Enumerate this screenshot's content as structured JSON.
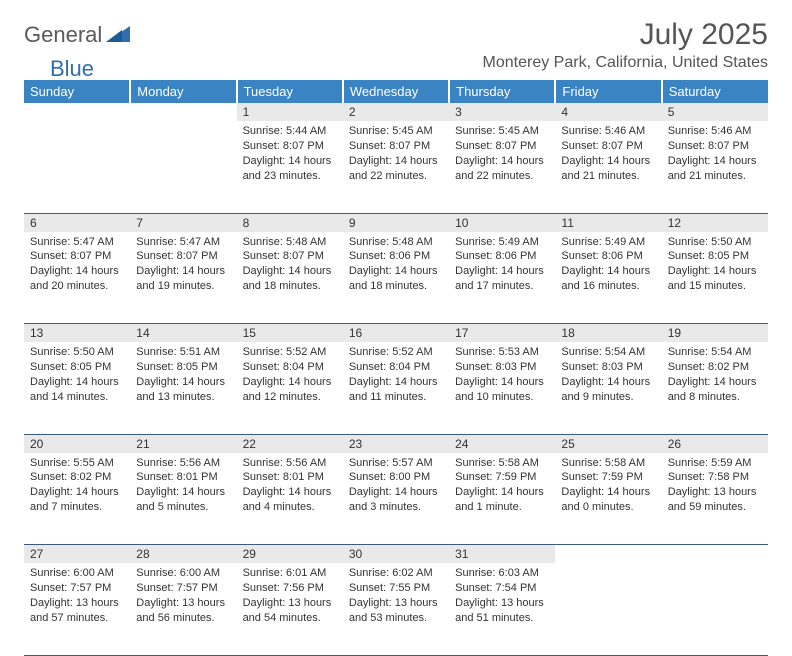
{
  "logo": {
    "text1": "General",
    "text2": "Blue"
  },
  "title": "July 2025",
  "location": "Monterey Park, California, United States",
  "colors": {
    "header_bg": "#3b84c4",
    "header_fg": "#ffffff",
    "daynum_bg": "#e9e9e9",
    "rule": "#3c5a7a",
    "logo_gray": "#5a5a5a",
    "logo_blue": "#2f6fad"
  },
  "columns": [
    "Sunday",
    "Monday",
    "Tuesday",
    "Wednesday",
    "Thursday",
    "Friday",
    "Saturday"
  ],
  "weeks": [
    [
      null,
      null,
      {
        "n": "1",
        "sunrise": "5:44 AM",
        "sunset": "8:07 PM",
        "daylight": "14 hours and 23 minutes."
      },
      {
        "n": "2",
        "sunrise": "5:45 AM",
        "sunset": "8:07 PM",
        "daylight": "14 hours and 22 minutes."
      },
      {
        "n": "3",
        "sunrise": "5:45 AM",
        "sunset": "8:07 PM",
        "daylight": "14 hours and 22 minutes."
      },
      {
        "n": "4",
        "sunrise": "5:46 AM",
        "sunset": "8:07 PM",
        "daylight": "14 hours and 21 minutes."
      },
      {
        "n": "5",
        "sunrise": "5:46 AM",
        "sunset": "8:07 PM",
        "daylight": "14 hours and 21 minutes."
      }
    ],
    [
      {
        "n": "6",
        "sunrise": "5:47 AM",
        "sunset": "8:07 PM",
        "daylight": "14 hours and 20 minutes."
      },
      {
        "n": "7",
        "sunrise": "5:47 AM",
        "sunset": "8:07 PM",
        "daylight": "14 hours and 19 minutes."
      },
      {
        "n": "8",
        "sunrise": "5:48 AM",
        "sunset": "8:07 PM",
        "daylight": "14 hours and 18 minutes."
      },
      {
        "n": "9",
        "sunrise": "5:48 AM",
        "sunset": "8:06 PM",
        "daylight": "14 hours and 18 minutes."
      },
      {
        "n": "10",
        "sunrise": "5:49 AM",
        "sunset": "8:06 PM",
        "daylight": "14 hours and 17 minutes."
      },
      {
        "n": "11",
        "sunrise": "5:49 AM",
        "sunset": "8:06 PM",
        "daylight": "14 hours and 16 minutes."
      },
      {
        "n": "12",
        "sunrise": "5:50 AM",
        "sunset": "8:05 PM",
        "daylight": "14 hours and 15 minutes."
      }
    ],
    [
      {
        "n": "13",
        "sunrise": "5:50 AM",
        "sunset": "8:05 PM",
        "daylight": "14 hours and 14 minutes."
      },
      {
        "n": "14",
        "sunrise": "5:51 AM",
        "sunset": "8:05 PM",
        "daylight": "14 hours and 13 minutes."
      },
      {
        "n": "15",
        "sunrise": "5:52 AM",
        "sunset": "8:04 PM",
        "daylight": "14 hours and 12 minutes."
      },
      {
        "n": "16",
        "sunrise": "5:52 AM",
        "sunset": "8:04 PM",
        "daylight": "14 hours and 11 minutes."
      },
      {
        "n": "17",
        "sunrise": "5:53 AM",
        "sunset": "8:03 PM",
        "daylight": "14 hours and 10 minutes."
      },
      {
        "n": "18",
        "sunrise": "5:54 AM",
        "sunset": "8:03 PM",
        "daylight": "14 hours and 9 minutes."
      },
      {
        "n": "19",
        "sunrise": "5:54 AM",
        "sunset": "8:02 PM",
        "daylight": "14 hours and 8 minutes."
      }
    ],
    [
      {
        "n": "20",
        "sunrise": "5:55 AM",
        "sunset": "8:02 PM",
        "daylight": "14 hours and 7 minutes."
      },
      {
        "n": "21",
        "sunrise": "5:56 AM",
        "sunset": "8:01 PM",
        "daylight": "14 hours and 5 minutes."
      },
      {
        "n": "22",
        "sunrise": "5:56 AM",
        "sunset": "8:01 PM",
        "daylight": "14 hours and 4 minutes."
      },
      {
        "n": "23",
        "sunrise": "5:57 AM",
        "sunset": "8:00 PM",
        "daylight": "14 hours and 3 minutes."
      },
      {
        "n": "24",
        "sunrise": "5:58 AM",
        "sunset": "7:59 PM",
        "daylight": "14 hours and 1 minute."
      },
      {
        "n": "25",
        "sunrise": "5:58 AM",
        "sunset": "7:59 PM",
        "daylight": "14 hours and 0 minutes."
      },
      {
        "n": "26",
        "sunrise": "5:59 AM",
        "sunset": "7:58 PM",
        "daylight": "13 hours and 59 minutes."
      }
    ],
    [
      {
        "n": "27",
        "sunrise": "6:00 AM",
        "sunset": "7:57 PM",
        "daylight": "13 hours and 57 minutes."
      },
      {
        "n": "28",
        "sunrise": "6:00 AM",
        "sunset": "7:57 PM",
        "daylight": "13 hours and 56 minutes."
      },
      {
        "n": "29",
        "sunrise": "6:01 AM",
        "sunset": "7:56 PM",
        "daylight": "13 hours and 54 minutes."
      },
      {
        "n": "30",
        "sunrise": "6:02 AM",
        "sunset": "7:55 PM",
        "daylight": "13 hours and 53 minutes."
      },
      {
        "n": "31",
        "sunrise": "6:03 AM",
        "sunset": "7:54 PM",
        "daylight": "13 hours and 51 minutes."
      },
      null,
      null
    ]
  ],
  "labels": {
    "sunrise": "Sunrise:",
    "sunset": "Sunset:",
    "daylight": "Daylight:"
  }
}
